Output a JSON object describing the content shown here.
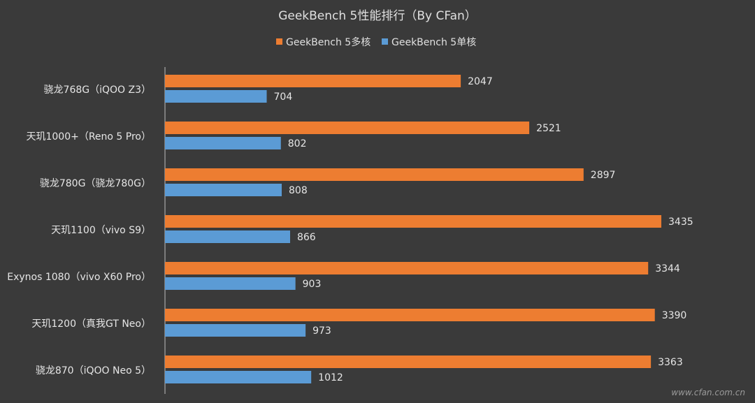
{
  "chart_data": {
    "type": "bar",
    "orientation": "horizontal",
    "title": "GeekBench 5性能排行（By CFan）",
    "legend_position": "top",
    "grid": false,
    "categories": [
      "骁龙768G（iQOO Z3）",
      "天玑1000+（Reno 5 Pro）",
      "骁龙780G（骁龙780G）",
      "天玑1100（vivo S9）",
      "Exynos 1080（vivo X60 Pro）",
      "天玑1200（真我GT Neo）",
      "骁龙870（iQOO Neo 5）"
    ],
    "series": [
      {
        "name": "GeekBench 5多核",
        "color": "#ed7d31",
        "values": [
          2047,
          2521,
          2897,
          3435,
          3344,
          3390,
          3363
        ]
      },
      {
        "name": "GeekBench 5单核",
        "color": "#5b9bd5",
        "values": [
          704,
          802,
          808,
          866,
          903,
          973,
          1012
        ]
      }
    ],
    "xlim": [
      0,
      3500
    ],
    "xlabel": "",
    "ylabel": ""
  },
  "watermark": "www.cfan.com.cn",
  "colors": {
    "background": "#3a3a3a",
    "axis": "#bfbfbf",
    "text": "#e6e6e6"
  }
}
